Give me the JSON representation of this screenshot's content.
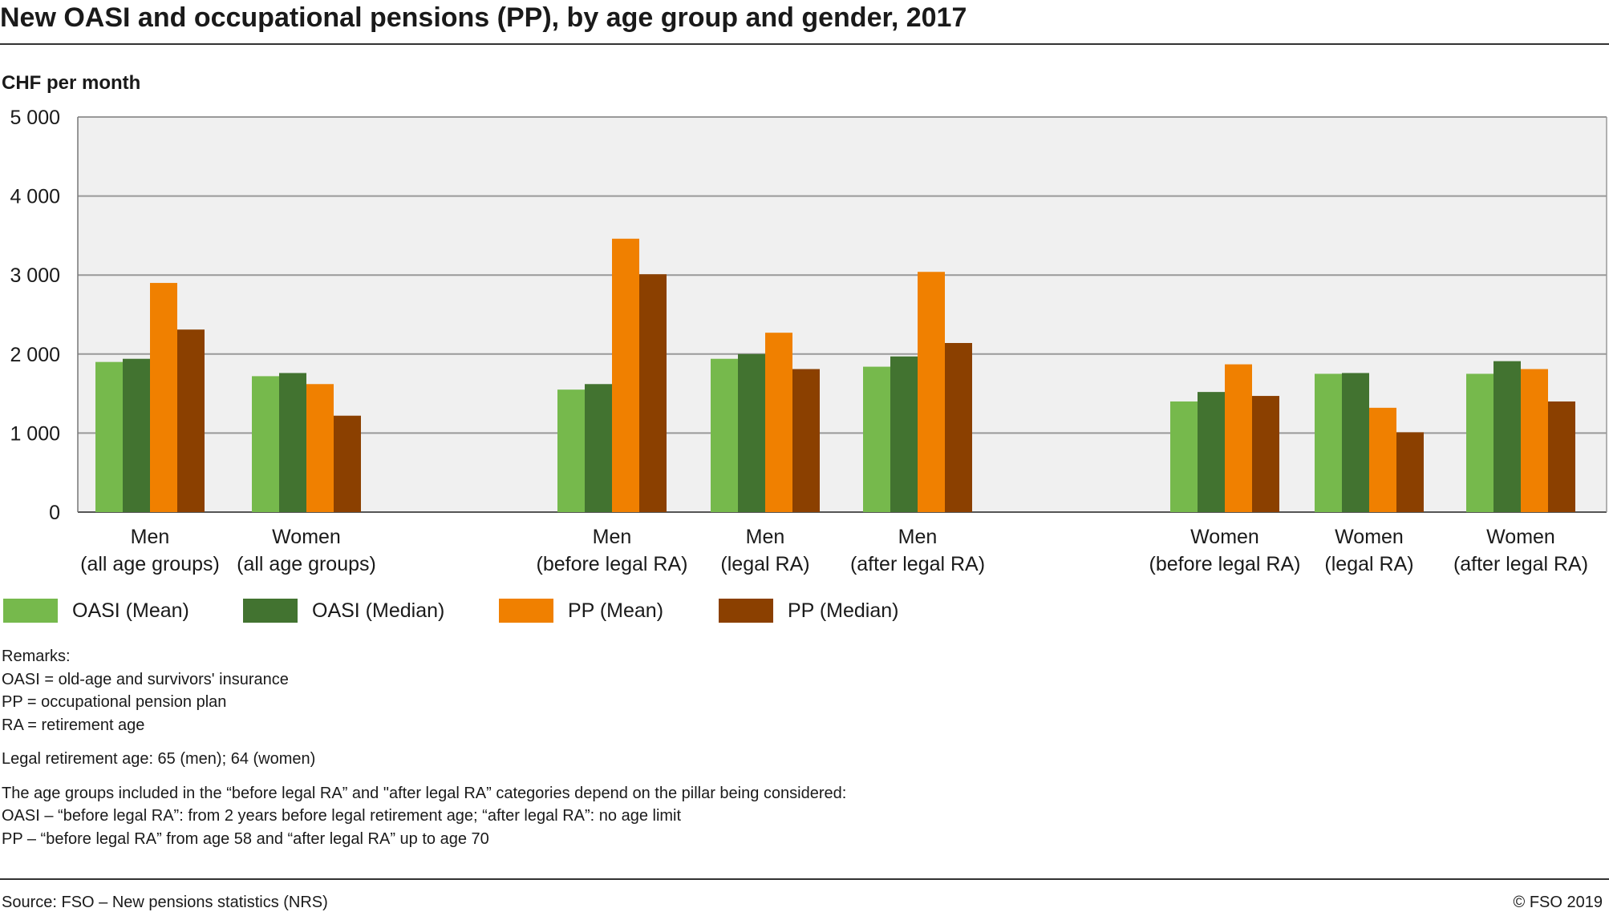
{
  "title": "New OASI and occupational pensions (PP), by age group and gender, 2017",
  "unit_label": "CHF per month",
  "chart_data": {
    "type": "bar",
    "title": "New OASI and occupational pensions (PP), by age group and gender, 2017",
    "ylabel": "CHF per month",
    "ylim": [
      0,
      5000
    ],
    "yticks": [
      0,
      1000,
      2000,
      3000,
      4000,
      5000
    ],
    "ytick_labels": [
      "0",
      "1 000",
      "2 000",
      "3 000",
      "4 000",
      "5 000"
    ],
    "grid": true,
    "legend_position": "bottom",
    "categories": [
      [
        "Men",
        "(all age groups)"
      ],
      [
        "Women",
        "(all age groups)"
      ],
      [
        "Men",
        "(before legal RA)"
      ],
      [
        "Men",
        "(legal RA)"
      ],
      [
        "Men",
        "(after legal RA)"
      ],
      [
        "Women",
        "(before legal RA)"
      ],
      [
        "Women",
        "(legal RA)"
      ],
      [
        "Women",
        "(after legal RA)"
      ]
    ],
    "series": [
      {
        "name": "OASI (Mean)",
        "color": "#76b94c",
        "values": [
          1900,
          1720,
          1550,
          1940,
          1840,
          1400,
          1750,
          1750
        ]
      },
      {
        "name": "OASI (Median)",
        "color": "#427330",
        "values": [
          1940,
          1760,
          1620,
          2000,
          1970,
          1520,
          1760,
          1910
        ]
      },
      {
        "name": "PP (Mean)",
        "color": "#f08000",
        "values": [
          2900,
          1620,
          3460,
          2270,
          3040,
          1870,
          1320,
          1810
        ]
      },
      {
        "name": "PP (Median)",
        "color": "#8b4000",
        "values": [
          2310,
          1220,
          3010,
          1810,
          2140,
          1470,
          1010,
          1400
        ]
      }
    ]
  },
  "remarks": {
    "heading": "Remarks:",
    "oasi": "OASI = old-age and survivors' insurance",
    "pp": "PP = occupational pension plan",
    "ra": "RA = retirement age",
    "legal_age": "Legal retirement age: 65 (men); 64 (women)",
    "groups_intro": "The age groups included in the “before legal RA” and \"after legal RA” categories depend on the pillar being considered:",
    "groups_oasi": "OASI – “before legal RA”: from 2 years before legal retirement age; “after legal RA”: no age limit",
    "groups_pp": "PP – “before legal RA” from age 58 and “after legal RA” up to age 70"
  },
  "source": "Source: FSO – New pensions statistics (NRS)",
  "copyright": "© FSO 2019"
}
